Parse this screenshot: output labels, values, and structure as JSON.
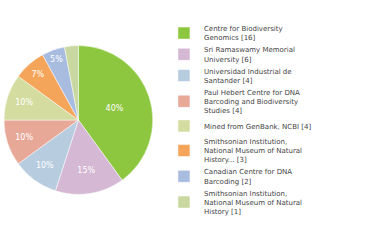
{
  "chart_data": {
    "type": "pie",
    "labels": [
      "Centre for Biodiversity\nGenomics [16]",
      "Sri Ramaswamy Memorial\nUniversity [6]",
      "Universidad Industrial de\nSantander [4]",
      "Paul Hebert Centre for DNA\nBarcoding and Biodiversity\nStudies [4]",
      "Mined from GenBank, NCBI [4]",
      "Smithsonian Institution,\nNational Museum of Natural\nHistory... [3]",
      "Canadian Centre for DNA\nBarcoding [2]",
      "Smithsonian Institution,\nNational Museum of Natural\nHistory [1]"
    ],
    "values": [
      40,
      15,
      10,
      10,
      10,
      7,
      5,
      3
    ],
    "value_labels": [
      "40%",
      "15%",
      "10%",
      "10%",
      "10%",
      "7%",
      "5%",
      null
    ],
    "colors": [
      "#8DC63F",
      "#D4B8D4",
      "#B8CCE0",
      "#E8A898",
      "#D4DCA0",
      "#F5A55A",
      "#A8BCE0",
      "#C8D8A0"
    ],
    "data_labels": true,
    "legend": "right"
  }
}
